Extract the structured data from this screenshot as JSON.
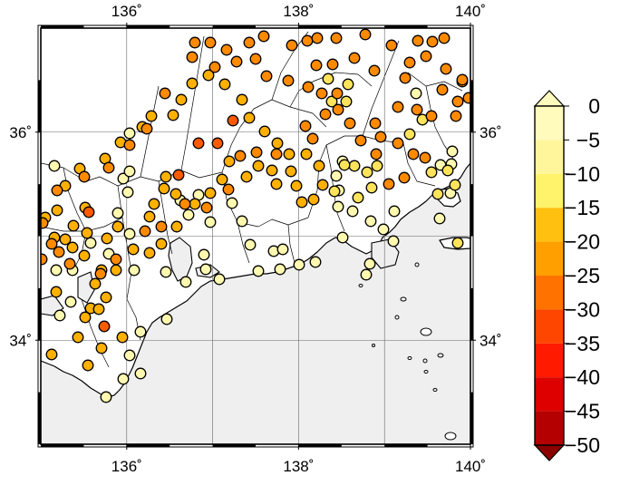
{
  "map": {
    "lon_range": [
      135,
      140
    ],
    "lat_range": [
      33,
      37
    ],
    "lon_ticks": [
      {
        "value": 136,
        "label": "136˚"
      },
      {
        "value": 138,
        "label": "138˚"
      },
      {
        "value": 140,
        "label": "140˚"
      }
    ],
    "lat_ticks": [
      {
        "value": 34,
        "label": "34˚"
      },
      {
        "value": 36,
        "label": "36˚"
      }
    ],
    "grid": true,
    "frame_style": "checkered-fancy",
    "land_color": "#ffffff",
    "sea_color": "#efefef"
  },
  "colorbar": {
    "orientation": "vertical",
    "placement": "right",
    "range": [
      -50,
      0
    ],
    "labels": [
      "0",
      "−5",
      "−10",
      "−15",
      "−20",
      "−25",
      "−30",
      "−35",
      "−40",
      "−45",
      "−50"
    ],
    "colors_top_to_bottom": [
      "#fffbbd",
      "#fff59b",
      "#fff36b",
      "#ffc010",
      "#ffa000",
      "#ff7200",
      "#ff4600",
      "#ff1a00",
      "#de0000",
      "#b40000",
      "#8a0000"
    ],
    "end_triangles": true
  },
  "station_values_by_category": {
    "0_to_-10": 56,
    "-10_to_-15": 18,
    "-15_to_-20": 64,
    "-20_to_-25": 76,
    "-25_to_-30": 6
  }
}
